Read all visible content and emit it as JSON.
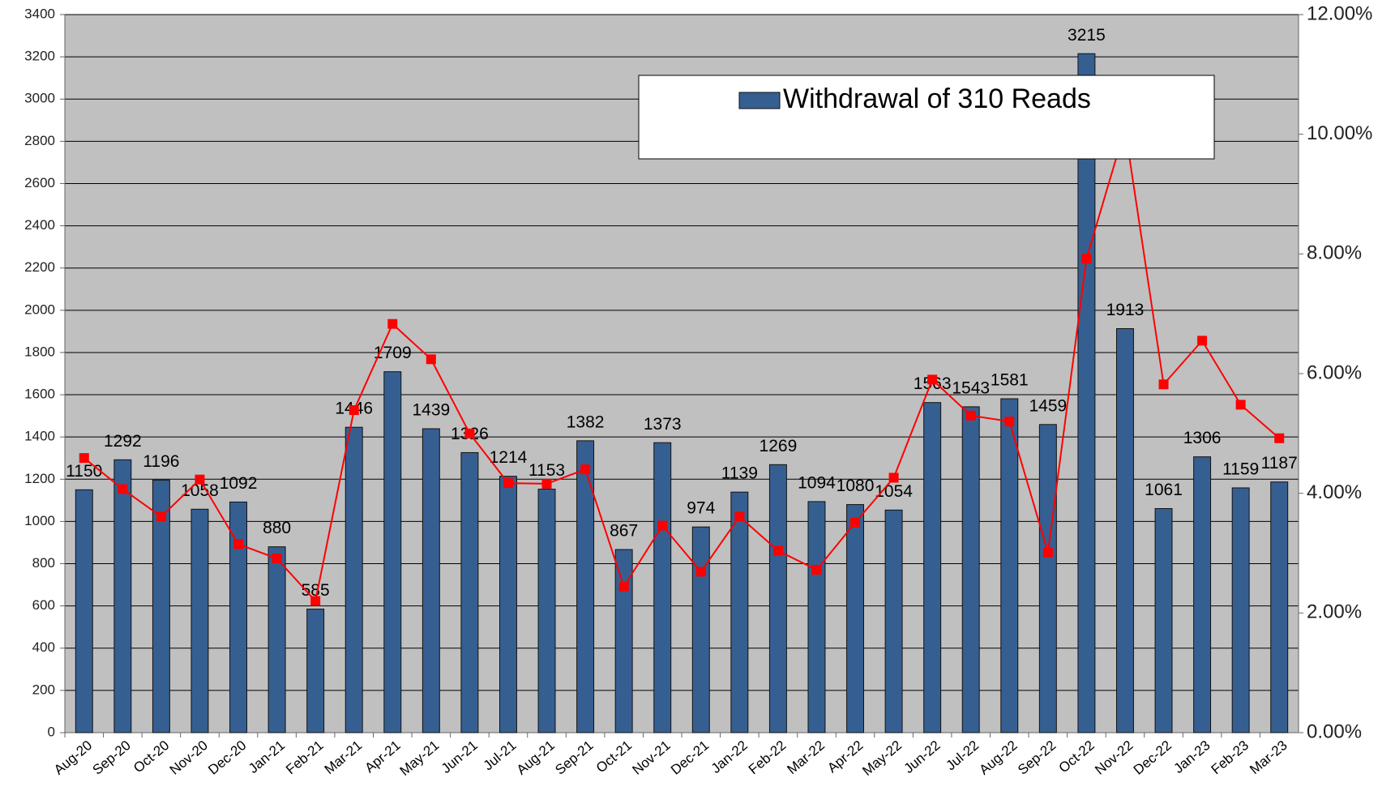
{
  "chart_data": {
    "type": "bar",
    "categories": [
      "Aug-20",
      "Sep-20",
      "Oct-20",
      "Nov-20",
      "Dec-20",
      "Jan-21",
      "Feb-21",
      "Mar-21",
      "Apr-21",
      "May-21",
      "Jun-21",
      "Jul-21",
      "Aug-21",
      "Sep-21",
      "Oct-21",
      "Nov-21",
      "Dec-21",
      "Jan-22",
      "Feb-22",
      "Mar-22",
      "Apr-22",
      "May-22",
      "Jun-22",
      "Jul-22",
      "Aug-22",
      "Sep-22",
      "Oct-22",
      "Nov-22",
      "Dec-22",
      "Jan-23",
      "Feb-23",
      "Mar-23"
    ],
    "series": [
      {
        "name": "Withdrawal of 310 Reads",
        "type": "bar",
        "color": "#365f91",
        "values": [
          1150,
          1292,
          1196,
          1058,
          1092,
          880,
          585,
          1446,
          1709,
          1439,
          1326,
          1214,
          1153,
          1382,
          867,
          1373,
          974,
          1139,
          1269,
          1094,
          1080,
          1054,
          1563,
          1543,
          1581,
          1459,
          3215,
          1913,
          1061,
          1306,
          1159,
          1187
        ]
      },
      {
        "type": "line",
        "axis": "y2",
        "color": "#ff0000",
        "values": [
          4.59,
          4.07,
          3.61,
          4.23,
          3.15,
          2.91,
          2.2,
          5.39,
          6.83,
          6.24,
          5.0,
          4.17,
          4.16,
          4.4,
          2.44,
          3.46,
          2.69,
          3.61,
          3.04,
          2.72,
          3.51,
          4.26,
          5.9,
          5.3,
          5.2,
          3.01,
          7.92,
          10.1,
          5.82,
          6.55,
          5.48,
          4.92
        ]
      }
    ],
    "ylim": [
      0,
      3400
    ],
    "yticks": [
      0,
      200,
      400,
      600,
      800,
      1000,
      1200,
      1400,
      1600,
      1800,
      2000,
      2200,
      2400,
      2600,
      2800,
      3000,
      3200,
      3400
    ],
    "y2lim": [
      0,
      12
    ],
    "y2ticks": [
      {
        "value": 0,
        "label": "0.00%"
      },
      {
        "value": 2,
        "label": "2.00%"
      },
      {
        "value": 4,
        "label": "4.00%"
      },
      {
        "value": 6,
        "label": "6.00%"
      },
      {
        "value": 8,
        "label": "8.00%"
      },
      {
        "value": 10,
        "label": "10.00%"
      },
      {
        "value": 12,
        "label": "12.00%"
      }
    ],
    "grid": true,
    "legend": "top-right"
  }
}
